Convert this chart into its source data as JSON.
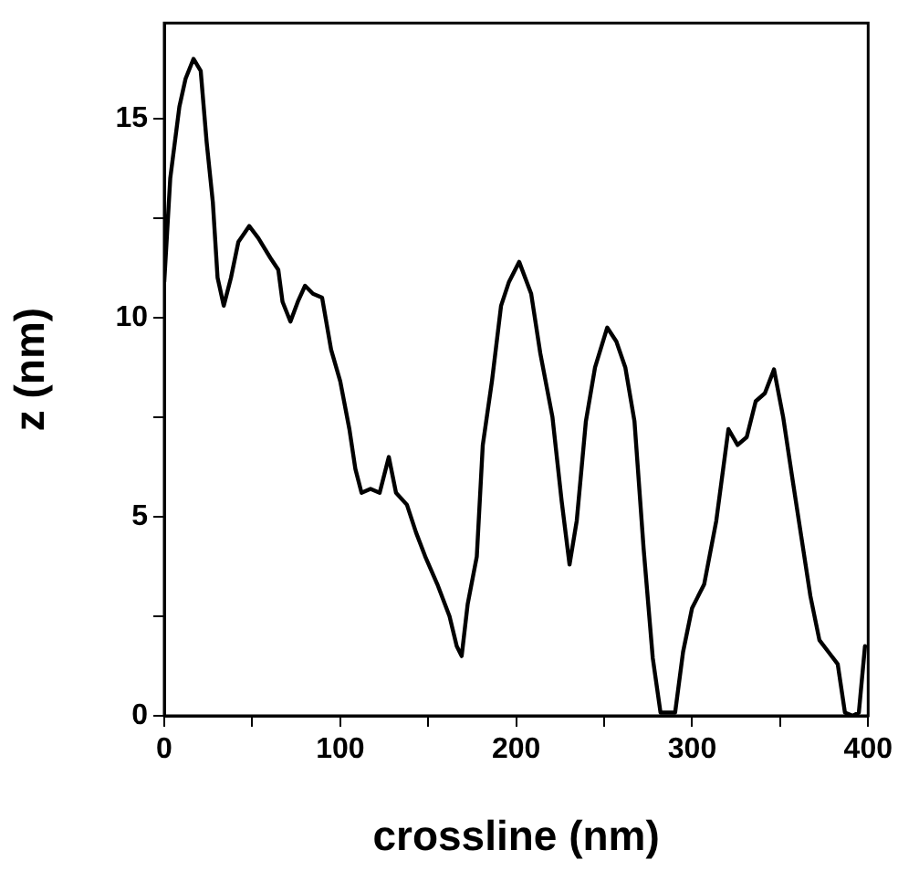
{
  "chart_data": {
    "type": "line",
    "xlabel": "crossline (nm)",
    "ylabel": "z (nm)",
    "xlim": [
      0,
      400
    ],
    "ylim": [
      0,
      17.4
    ],
    "xticks": [
      0,
      {
        "value": 50,
        "label": null
      },
      100,
      {
        "value": 150,
        "label": null
      },
      200,
      {
        "value": 250,
        "label": null
      },
      300,
      {
        "value": 350,
        "label": null
      },
      400
    ],
    "yticks": [
      0,
      {
        "value": 2.5,
        "label": null
      },
      5,
      {
        "value": 7.5,
        "label": null
      },
      10,
      {
        "value": 12.5,
        "label": null
      },
      15
    ],
    "grid": false,
    "legend": false,
    "marker": "none",
    "line_style": "solid",
    "series": [
      {
        "color": "#000000",
        "x": [
          0,
          3.4,
          8.6,
          12.1,
          16.6,
          20.7,
          24.1,
          27.6,
          30.3,
          33.8,
          37.9,
          42.1,
          48.3,
          53.4,
          60.3,
          64.8,
          67.2,
          71.7,
          75.9,
          80,
          84.5,
          89.7,
          94.8,
          100,
          105.2,
          108.6,
          112.1,
          117.2,
          122.4,
          127.6,
          131.7,
          137.9,
          143.1,
          148.3,
          155.2,
          162.1,
          166.2,
          169,
          172.4,
          177.6,
          181,
          186.2,
          191.4,
          195.9,
          201.7,
          208.5,
          213.7,
          220.6,
          225.8,
          230.3,
          234.4,
          239.6,
          244.8,
          251.7,
          256.9,
          262,
          267.2,
          272.4,
          277.6,
          282,
          286.1,
          290.3,
          294.8,
          299.9,
          306.8,
          313.7,
          320.6,
          325.8,
          331,
          336.1,
          341.3,
          346.5,
          351.7,
          356.8,
          362,
          367.2,
          372.3,
          377.5,
          382.7,
          386.8,
          391.3,
          394.7,
          398.2
        ],
        "values": [
          10.9,
          13.5,
          15.3,
          16.0,
          16.5,
          16.2,
          14.4,
          12.9,
          11.0,
          10.3,
          11.0,
          11.9,
          12.3,
          12.0,
          11.5,
          11.2,
          10.4,
          9.9,
          10.4,
          10.8,
          10.6,
          10.5,
          9.2,
          8.4,
          7.2,
          6.2,
          5.6,
          5.7,
          5.6,
          6.5,
          5.6,
          5.3,
          4.6,
          4.0,
          3.3,
          2.5,
          1.75,
          1.5,
          2.8,
          4.0,
          6.8,
          8.4,
          10.3,
          10.9,
          11.4,
          10.6,
          9.1,
          7.5,
          5.4,
          3.8,
          4.9,
          7.4,
          8.75,
          9.75,
          9.4,
          8.75,
          7.4,
          4.2,
          1.45,
          0.08,
          0.08,
          0.08,
          1.6,
          2.7,
          3.3,
          4.9,
          7.2,
          6.8,
          7.0,
          7.9,
          8.1,
          8.7,
          7.5,
          6.0,
          4.5,
          3.0,
          1.9,
          1.6,
          1.3,
          0.08,
          0,
          0.08,
          1.75
        ]
      }
    ]
  }
}
